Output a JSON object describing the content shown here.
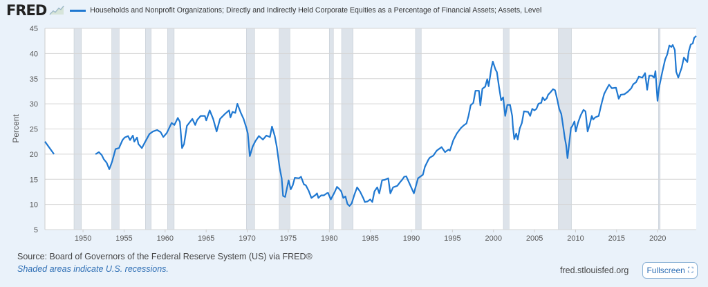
{
  "header": {
    "logo_text": "FRED",
    "logo_icon": "sparkline-chart-icon",
    "legend_label": "Households and Nonprofit Organizations; Directly and Indirectly Held Corporate Equities as a Percentage of Financial Assets; Assets, Level"
  },
  "footer": {
    "source": "Source: Board of Governors of the Federal Reserve System (US) via FRED®",
    "note": "Shaded areas indicate U.S. recessions.",
    "site": "fred.stlouisfed.org",
    "fullscreen_label": "Fullscreen",
    "fullscreen_icon": "expand-icon"
  },
  "colors": {
    "line": "#1f78d1",
    "recession": "#dde3ea",
    "background": "#eaf2fa"
  },
  "chart_data": {
    "type": "line",
    "title": "",
    "xlabel": "",
    "ylabel": "Percent",
    "xlim": [
      1945.36,
      2024.7
    ],
    "ylim": [
      5,
      45
    ],
    "grid": true,
    "legend": "top-left",
    "x_ticks": [
      1950,
      1955,
      1960,
      1965,
      1970,
      1975,
      1980,
      1985,
      1990,
      1995,
      2000,
      2005,
      2010,
      2015,
      2020
    ],
    "y_ticks": [
      5,
      10,
      15,
      20,
      25,
      30,
      35,
      40,
      45
    ],
    "recessions": [
      [
        1948.9,
        1949.8
      ],
      [
        1953.5,
        1954.4
      ],
      [
        1957.6,
        1958.3
      ],
      [
        1960.3,
        1961.1
      ],
      [
        1969.9,
        1970.9
      ],
      [
        1973.9,
        1975.2
      ],
      [
        1980.0,
        1980.5
      ],
      [
        1981.5,
        1982.9
      ],
      [
        1990.5,
        1991.2
      ],
      [
        2001.2,
        2001.9
      ],
      [
        2007.9,
        2009.5
      ],
      [
        2020.1,
        2020.3
      ]
    ],
    "series": [
      {
        "name": "Households and Nonprofit Organizations; Directly and Indirectly Held Corporate Equities as a Percentage of Financial Assets; Assets, Level",
        "segments": [
          [
            [
              1945.36,
              22.5
            ],
            [
              1946.46,
              20.0
            ]
          ],
          [
            [
              1951.52,
              20.0
            ],
            [
              1951.94,
              20.4
            ],
            [
              1952.28,
              19.8
            ],
            [
              1952.53,
              19.0
            ],
            [
              1952.87,
              18.3
            ],
            [
              1953.2,
              17.0
            ],
            [
              1953.54,
              18.5
            ],
            [
              1953.96,
              21.0
            ],
            [
              1954.38,
              21.2
            ],
            [
              1954.81,
              22.8
            ],
            [
              1955.06,
              23.3
            ],
            [
              1955.48,
              23.6
            ],
            [
              1955.73,
              22.8
            ],
            [
              1956.07,
              23.7
            ],
            [
              1956.24,
              22.5
            ],
            [
              1956.58,
              23.3
            ],
            [
              1956.75,
              22.0
            ],
            [
              1957.17,
              21.2
            ],
            [
              1957.59,
              22.5
            ],
            [
              1958.09,
              24.0
            ],
            [
              1958.52,
              24.5
            ],
            [
              1959.02,
              24.8
            ],
            [
              1959.44,
              24.4
            ],
            [
              1959.78,
              23.4
            ],
            [
              1960.2,
              24.2
            ],
            [
              1960.79,
              26.2
            ],
            [
              1961.13,
              25.8
            ],
            [
              1961.55,
              27.2
            ],
            [
              1961.8,
              26.4
            ],
            [
              1962.06,
              21.2
            ],
            [
              1962.31,
              22.0
            ],
            [
              1962.65,
              25.6
            ],
            [
              1963.32,
              27.0
            ],
            [
              1963.66,
              25.8
            ],
            [
              1963.91,
              26.8
            ],
            [
              1964.33,
              27.6
            ],
            [
              1964.84,
              27.6
            ],
            [
              1965.01,
              26.7
            ],
            [
              1965.43,
              28.7
            ],
            [
              1965.85,
              27.0
            ],
            [
              1966.27,
              24.5
            ],
            [
              1966.69,
              27.0
            ],
            [
              1967.29,
              28.0
            ],
            [
              1967.79,
              28.7
            ],
            [
              1967.96,
              27.3
            ],
            [
              1968.21,
              28.4
            ],
            [
              1968.55,
              28.2
            ],
            [
              1968.8,
              30.0
            ],
            [
              1969.22,
              28.2
            ],
            [
              1969.56,
              27.0
            ],
            [
              1969.9,
              25.2
            ],
            [
              1970.07,
              24.1
            ],
            [
              1970.32,
              19.6
            ],
            [
              1970.66,
              21.5
            ],
            [
              1971.0,
              22.6
            ],
            [
              1971.42,
              23.6
            ],
            [
              1971.92,
              22.9
            ],
            [
              1972.34,
              23.7
            ],
            [
              1972.77,
              23.4
            ],
            [
              1973.02,
              25.5
            ],
            [
              1973.36,
              23.6
            ],
            [
              1973.61,
              21.4
            ],
            [
              1973.95,
              17.3
            ],
            [
              1974.2,
              15.2
            ],
            [
              1974.37,
              11.7
            ],
            [
              1974.62,
              11.5
            ],
            [
              1975.04,
              14.8
            ],
            [
              1975.3,
              13.0
            ],
            [
              1975.55,
              13.8
            ],
            [
              1975.8,
              15.3
            ],
            [
              1976.31,
              15.2
            ],
            [
              1976.56,
              15.5
            ],
            [
              1976.9,
              14.0
            ],
            [
              1977.15,
              13.8
            ],
            [
              1977.49,
              12.7
            ],
            [
              1977.82,
              11.3
            ],
            [
              1978.33,
              11.9
            ],
            [
              1978.5,
              12.2
            ],
            [
              1978.67,
              11.3
            ],
            [
              1979.01,
              11.8
            ],
            [
              1979.34,
              11.8
            ],
            [
              1979.68,
              12.2
            ],
            [
              1979.85,
              12.3
            ],
            [
              1980.19,
              11.0
            ],
            [
              1980.61,
              12.3
            ],
            [
              1980.94,
              13.5
            ],
            [
              1981.2,
              13.1
            ],
            [
              1981.45,
              12.6
            ],
            [
              1981.7,
              11.3
            ],
            [
              1981.96,
              11.6
            ],
            [
              1982.21,
              10.1
            ],
            [
              1982.46,
              9.7
            ],
            [
              1982.72,
              10.2
            ],
            [
              1983.05,
              11.9
            ],
            [
              1983.39,
              13.4
            ],
            [
              1983.73,
              12.6
            ],
            [
              1984.15,
              11.2
            ],
            [
              1984.32,
              10.5
            ],
            [
              1984.65,
              10.6
            ],
            [
              1984.99,
              11.0
            ],
            [
              1985.24,
              10.5
            ],
            [
              1985.5,
              12.6
            ],
            [
              1985.84,
              13.4
            ],
            [
              1986.09,
              12.2
            ],
            [
              1986.43,
              14.8
            ],
            [
              1986.76,
              14.9
            ],
            [
              1987.18,
              15.2
            ],
            [
              1987.44,
              12.2
            ],
            [
              1987.77,
              13.4
            ],
            [
              1988.28,
              13.7
            ],
            [
              1988.7,
              14.6
            ],
            [
              1988.87,
              14.9
            ],
            [
              1989.12,
              15.5
            ],
            [
              1989.38,
              15.6
            ],
            [
              1990.3,
              12.2
            ],
            [
              1990.81,
              15.2
            ],
            [
              1991.4,
              15.9
            ],
            [
              1991.65,
              17.5
            ],
            [
              1992.07,
              18.9
            ],
            [
              1992.24,
              19.3
            ],
            [
              1992.66,
              19.7
            ],
            [
              1993.09,
              20.7
            ],
            [
              1993.68,
              21.4
            ],
            [
              1994.1,
              20.4
            ],
            [
              1994.52,
              20.9
            ],
            [
              1994.69,
              20.7
            ],
            [
              1995.11,
              22.8
            ],
            [
              1995.53,
              24.1
            ],
            [
              1996.04,
              25.2
            ],
            [
              1996.37,
              25.7
            ],
            [
              1996.71,
              26.1
            ],
            [
              1996.96,
              27.6
            ],
            [
              1997.22,
              29.7
            ],
            [
              1997.55,
              30.2
            ],
            [
              1997.81,
              32.6
            ],
            [
              1998.23,
              32.6
            ],
            [
              1998.4,
              29.7
            ],
            [
              1998.65,
              33.0
            ],
            [
              1998.99,
              33.4
            ],
            [
              1999.24,
              34.9
            ],
            [
              1999.41,
              33.5
            ],
            [
              1999.75,
              37.2
            ],
            [
              1999.92,
              38.4
            ],
            [
              2000.25,
              36.8
            ],
            [
              2000.42,
              36.3
            ],
            [
              2000.67,
              33.4
            ],
            [
              2000.93,
              30.7
            ],
            [
              2001.18,
              31.3
            ],
            [
              2001.43,
              27.6
            ],
            [
              2001.69,
              29.8
            ],
            [
              2002.02,
              29.8
            ],
            [
              2002.28,
              27.6
            ],
            [
              2002.36,
              25.5
            ],
            [
              2002.53,
              23.0
            ],
            [
              2002.78,
              24.1
            ],
            [
              2002.95,
              22.9
            ],
            [
              2003.2,
              25.1
            ],
            [
              2003.46,
              26.2
            ],
            [
              2003.71,
              28.5
            ],
            [
              2004.22,
              28.4
            ],
            [
              2004.47,
              27.6
            ],
            [
              2004.72,
              29.0
            ],
            [
              2004.98,
              28.7
            ],
            [
              2005.23,
              29.0
            ],
            [
              2005.48,
              30.0
            ],
            [
              2005.82,
              30.2
            ],
            [
              2005.99,
              31.3
            ],
            [
              2006.24,
              30.7
            ],
            [
              2006.49,
              31.1
            ],
            [
              2006.66,
              31.8
            ],
            [
              2007.0,
              32.4
            ],
            [
              2007.25,
              32.9
            ],
            [
              2007.5,
              32.7
            ],
            [
              2007.76,
              30.9
            ],
            [
              2008.01,
              29.0
            ],
            [
              2008.26,
              28.0
            ],
            [
              2008.43,
              26.2
            ],
            [
              2008.69,
              23.2
            ],
            [
              2008.85,
              21.8
            ],
            [
              2009.02,
              19.2
            ],
            [
              2009.44,
              25.2
            ],
            [
              2009.61,
              25.6
            ],
            [
              2009.87,
              26.5
            ],
            [
              2010.03,
              24.5
            ],
            [
              2010.29,
              26.2
            ],
            [
              2010.62,
              27.7
            ],
            [
              2010.96,
              28.8
            ],
            [
              2011.21,
              28.5
            ],
            [
              2011.47,
              24.5
            ],
            [
              2011.72,
              25.9
            ],
            [
              2011.97,
              27.6
            ],
            [
              2012.14,
              26.9
            ],
            [
              2012.39,
              27.3
            ],
            [
              2012.82,
              27.6
            ],
            [
              2013.07,
              29.4
            ],
            [
              2013.24,
              30.5
            ],
            [
              2013.49,
              32.0
            ],
            [
              2013.74,
              32.8
            ],
            [
              2014.08,
              33.8
            ],
            [
              2014.42,
              33.1
            ],
            [
              2014.92,
              33.2
            ],
            [
              2015.26,
              31.0
            ],
            [
              2015.51,
              31.8
            ],
            [
              2015.94,
              31.9
            ],
            [
              2016.36,
              32.4
            ],
            [
              2016.78,
              33.1
            ],
            [
              2017.03,
              33.9
            ],
            [
              2017.37,
              34.3
            ],
            [
              2017.71,
              35.4
            ],
            [
              2018.13,
              35.2
            ],
            [
              2018.47,
              36.1
            ],
            [
              2018.72,
              32.8
            ],
            [
              2018.97,
              35.6
            ],
            [
              2019.31,
              35.6
            ],
            [
              2019.56,
              35.2
            ],
            [
              2019.73,
              36.5
            ],
            [
              2019.98,
              30.6
            ],
            [
              2020.15,
              33.1
            ],
            [
              2020.57,
              36.4
            ],
            [
              2020.91,
              38.8
            ],
            [
              2021.16,
              39.8
            ],
            [
              2021.42,
              41.6
            ],
            [
              2021.67,
              41.3
            ],
            [
              2021.84,
              41.7
            ],
            [
              2022.09,
              40.7
            ],
            [
              2022.26,
              36.4
            ],
            [
              2022.51,
              35.2
            ],
            [
              2022.93,
              37.2
            ],
            [
              2023.19,
              39.2
            ],
            [
              2023.61,
              38.3
            ],
            [
              2023.78,
              40.4
            ],
            [
              2024.03,
              41.8
            ],
            [
              2024.28,
              42.0
            ],
            [
              2024.45,
              43.1
            ],
            [
              2024.7,
              43.5
            ]
          ]
        ]
      }
    ]
  }
}
